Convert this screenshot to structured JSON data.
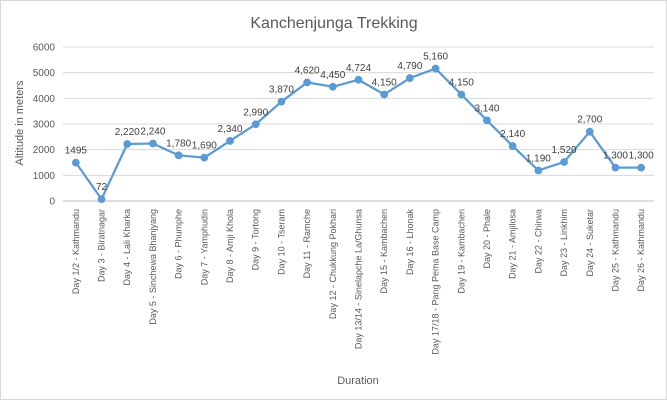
{
  "chart_data": {
    "type": "line",
    "title": "Kanchenjunga Trekking",
    "xlabel": "Duration",
    "ylabel": "Altitude in meters",
    "ylim": [
      0,
      6000
    ],
    "yticks": [
      "0",
      "1000",
      "2000",
      "3000",
      "4000",
      "5000",
      "6000"
    ],
    "grid": true,
    "legend": "none",
    "colors": {
      "line": "#5b9bd5",
      "grid": "#d9d9d9",
      "text": "#595959"
    },
    "categories": [
      "Day 1/2 - Kathmandu",
      "Day 3 - Biratnagar",
      "Day 4 - Lali Kharka",
      "Day 5 - Sinchewa Bhanjyang",
      "Day 6 - Phumphe",
      "Day 7 - Yamphudin",
      "Day 8 - Amji Khola",
      "Day 9 - Tortong",
      "Day 10 - Tseram",
      "Day 11 - Ramche",
      "Day 12 - Chukkung Pokhari",
      "Day 13/14 - Sinelapche La/Ghunsa",
      "Day 15 - Kambachen",
      "Day 16 - Lhonak",
      "Day 17/18 - Pang Pema Base Camp",
      "Day 19 - Kambachen",
      "Day 20 - Phale",
      "Day 21 - Amjilosa",
      "Day 22 - Chirwa",
      "Day 23 - Linkhim",
      "Day 24 - Suketar",
      "Day 25 - Kathmandu",
      "Day 26 - Kathmandu"
    ],
    "values": [
      1495,
      72,
      2220,
      2240,
      1780,
      1690,
      2340,
      2990,
      3870,
      4620,
      4450,
      4724,
      4150,
      4790,
      5160,
      4150,
      3140,
      2140,
      1190,
      1520,
      2700,
      1300,
      1300
    ],
    "data_labels": [
      "1495",
      "72",
      "2,220",
      "2,240",
      "1,780",
      "1,690",
      "2,340",
      "2,990",
      "3,870",
      "4,620",
      "4,450",
      "4,724",
      "4,150",
      "4,790",
      "5,160",
      "4,150",
      "3,140",
      "2,140",
      "1,190",
      "1,520",
      "2,700",
      "1,300",
      "1,300"
    ]
  }
}
